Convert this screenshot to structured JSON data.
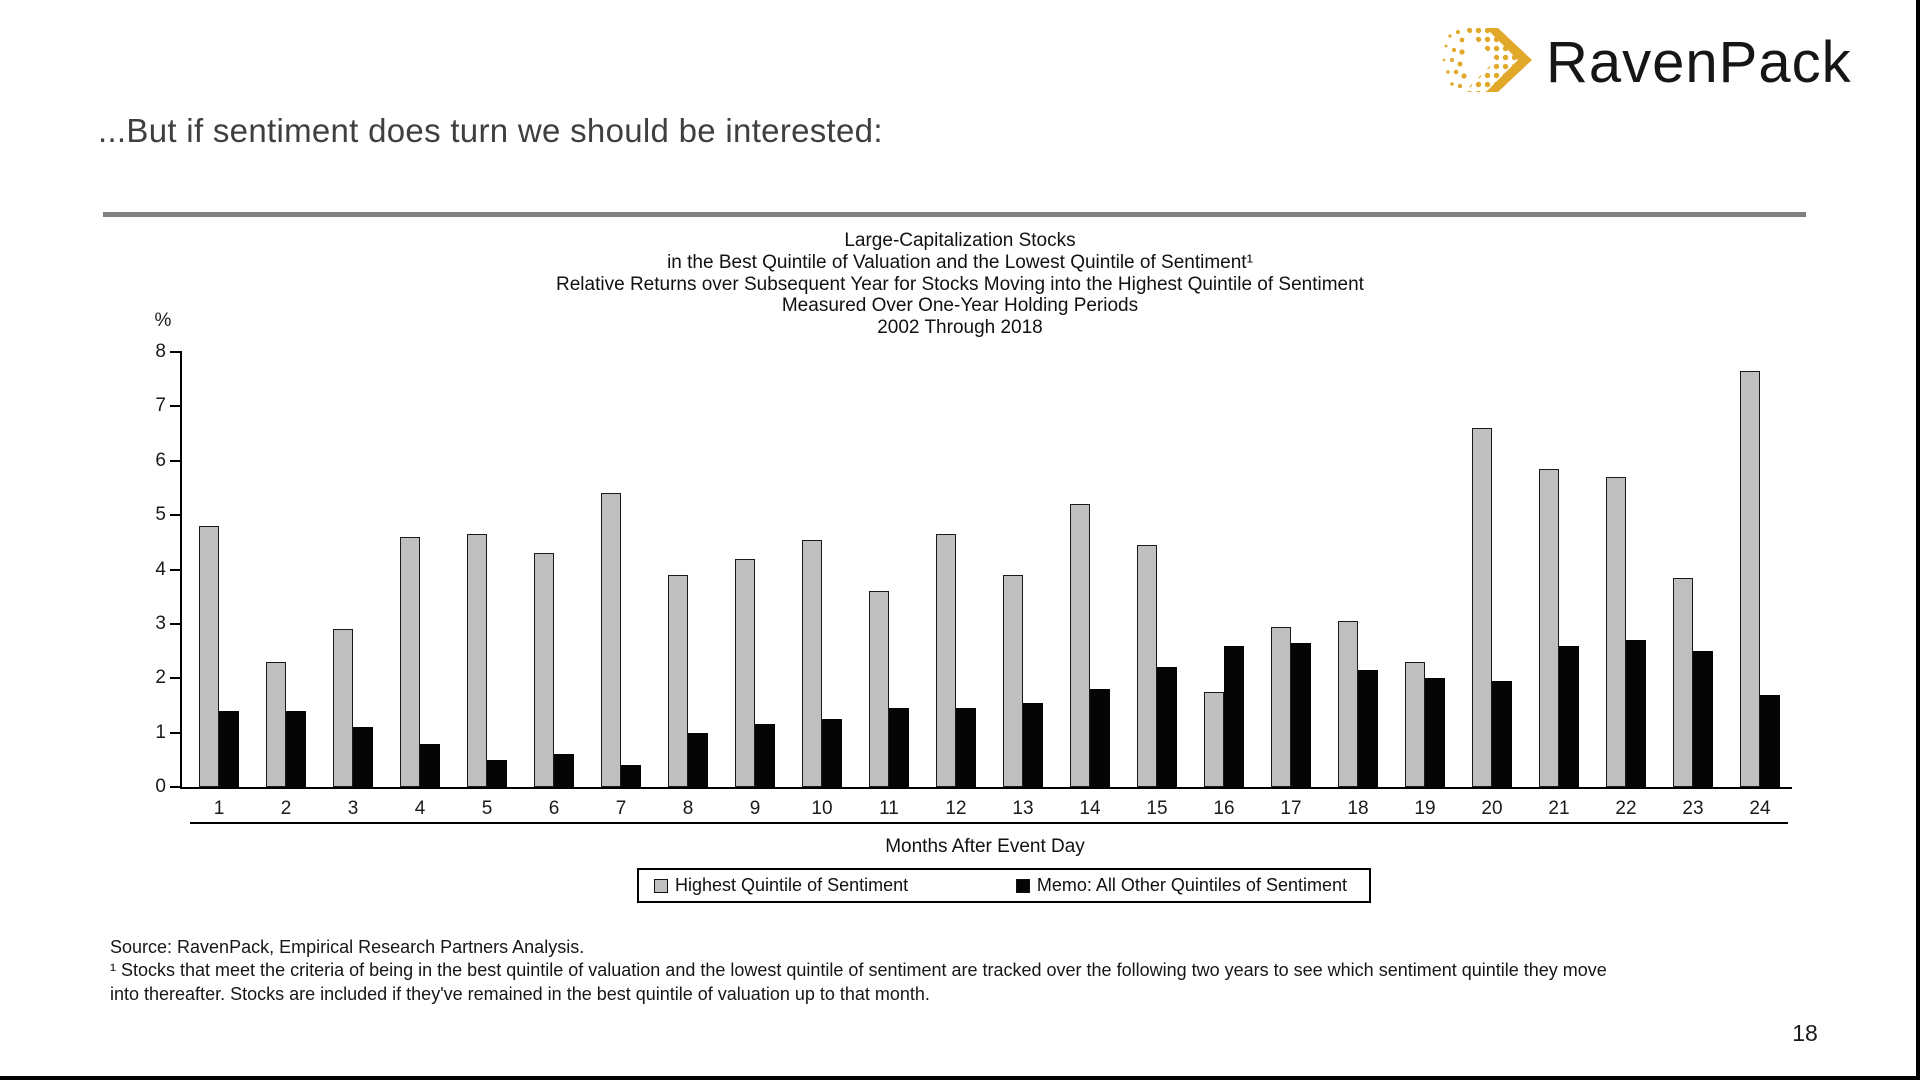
{
  "slide": {
    "title": "...But if sentiment does turn we should be interested:",
    "page_number": "18",
    "logo": {
      "icon": "ravenpack-arrow-icon",
      "text": "RavenPack",
      "accent_color": "#E2A82A",
      "text_color": "#161616"
    }
  },
  "chart_data": {
    "type": "bar",
    "title_lines": [
      "Large-Capitalization Stocks",
      "in the Best Quintile of Valuation and the Lowest Quintile of Sentiment¹",
      "Relative Returns over Subsequent Year for Stocks Moving into the Highest Quintile of Sentiment",
      "Measured Over One-Year Holding Periods",
      "2002 Through 2018"
    ],
    "unit_label": "%",
    "xlabel": "Months After Event Day",
    "ylim": [
      0,
      8
    ],
    "yticks": [
      0,
      1,
      2,
      3,
      4,
      5,
      6,
      7,
      8
    ],
    "grid": false,
    "legend_position": "bottom-box",
    "categories": [
      "1",
      "2",
      "3",
      "4",
      "5",
      "6",
      "7",
      "8",
      "9",
      "10",
      "11",
      "12",
      "13",
      "14",
      "15",
      "16",
      "17",
      "18",
      "19",
      "20",
      "21",
      "22",
      "23",
      "24"
    ],
    "series": [
      {
        "name": "Highest Quintile of Sentiment",
        "color": "#BFBFBF",
        "values": [
          4.8,
          2.3,
          2.9,
          4.6,
          4.65,
          4.3,
          5.4,
          3.9,
          4.2,
          4.55,
          3.6,
          4.65,
          3.9,
          5.2,
          4.45,
          1.75,
          2.95,
          3.05,
          2.3,
          6.6,
          5.85,
          5.7,
          3.85,
          7.65
        ]
      },
      {
        "name": "Memo: All Other Quintiles of Sentiment",
        "color": "#050505",
        "values": [
          1.4,
          1.4,
          1.1,
          0.8,
          0.5,
          0.6,
          0.4,
          1.0,
          1.15,
          1.25,
          1.45,
          1.45,
          1.55,
          1.8,
          2.2,
          2.6,
          2.65,
          2.15,
          2.0,
          1.95,
          2.6,
          2.7,
          2.5,
          1.7
        ]
      }
    ]
  },
  "footer": {
    "source_line": "Source: RavenPack, Empirical Research Partners Analysis.",
    "footnote_lines": [
      "¹ Stocks that meet the criteria of being in the best quintile of valuation and the lowest quintile of sentiment are tracked over the following two years to  see which sentiment quintile they move",
      "into thereafter.  Stocks are included if they've remained in the best quintile of valuation up to that month."
    ]
  }
}
